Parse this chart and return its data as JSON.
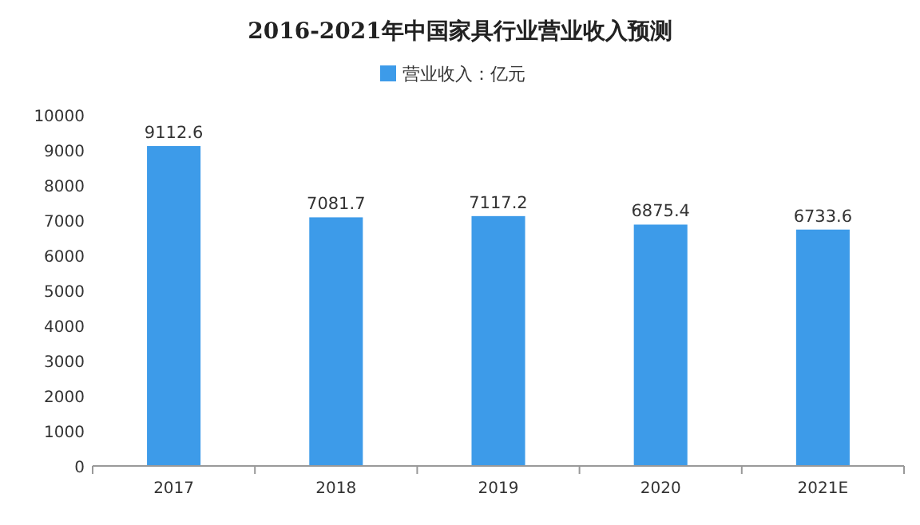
{
  "chart_data": {
    "type": "bar",
    "title": "2016-2021年中国家具行业营业收入预测",
    "categories": [
      "2017",
      "2018",
      "2019",
      "2020",
      "2021E"
    ],
    "series": [
      {
        "name": "营业收入：亿元",
        "color": "#3d9be9",
        "values": [
          9112.6,
          7081.7,
          7117.2,
          6875.4,
          6733.6
        ]
      }
    ],
    "ylim": [
      0,
      10000
    ],
    "yticks": [
      0,
      1000,
      2000,
      3000,
      4000,
      5000,
      6000,
      7000,
      8000,
      9000,
      10000
    ],
    "data_labels": true,
    "legend": "top"
  }
}
